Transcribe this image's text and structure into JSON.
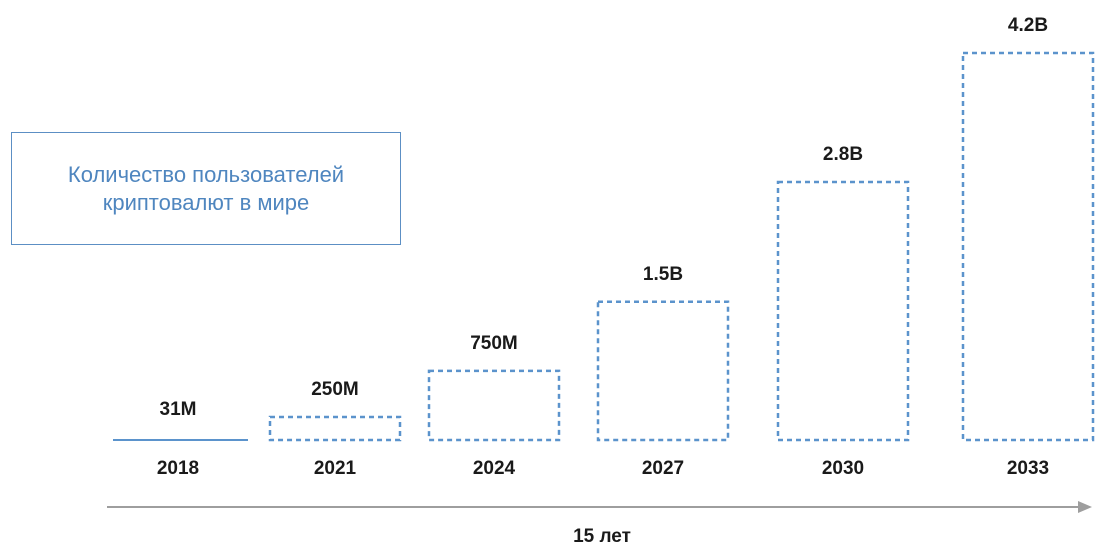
{
  "chart_data": {
    "type": "bar",
    "title_lines": [
      "Количество пользователей",
      "криптовалют в мире"
    ],
    "categories": [
      "2018",
      "2021",
      "2024",
      "2027",
      "2030",
      "2033"
    ],
    "values": [
      31000000,
      250000000,
      750000000,
      1500000000,
      2800000000,
      4200000000
    ],
    "value_labels": [
      "31M",
      "250M",
      "750M",
      "1.5B",
      "2.8B",
      "4.2B"
    ],
    "xlabel": "15 лет",
    "ylabel": "",
    "ylim": [
      0,
      4200000000
    ],
    "grid": false,
    "legend": "none"
  },
  "colors": {
    "bar_stroke": "#5b93cc",
    "title_text": "#4f86bf",
    "title_border": "#5c8fc4",
    "axis_arrow": "#9e9e9e",
    "label_text": "#1a1a1a"
  }
}
